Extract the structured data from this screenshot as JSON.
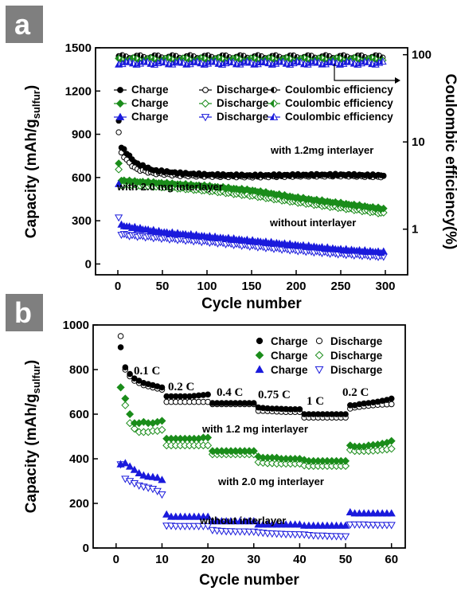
{
  "chart_data": [
    {
      "panel": "a",
      "type": "scatter",
      "xlabel": "Cycle number",
      "ylabel": "Capacity (mAh/g",
      "ylabel_sub": "sulfur",
      "ylabel_tail": ")",
      "y2label": "Coulombic efficiency(%)",
      "xlim": [
        -25,
        325
      ],
      "ylim": [
        -75,
        1500
      ],
      "y2lim_log": [
        0.3,
        120
      ],
      "x_ticks": [
        "0",
        "50",
        "100",
        "150",
        "200",
        "250",
        "300"
      ],
      "y_ticks": [
        "0",
        "300",
        "600",
        "900",
        "1200",
        "1500"
      ],
      "y2_ticks": [
        "1",
        "10",
        "100"
      ],
      "legend": [
        [
          "Charge",
          "Discharge",
          "Coulombic efficiency"
        ],
        [
          "Charge",
          "Discharge",
          "Coulombic efficiency"
        ],
        [
          "Charge",
          "Discharge",
          "Coulombic efficiency"
        ]
      ],
      "annotations": [
        "with 1.2mg interlayer",
        "with 2.0 mg interlayer",
        "without interlayer"
      ],
      "series": [
        {
          "name": "with 1.2mg interlayer",
          "color": "#000000",
          "charge_anchors": [
            [
              1,
              990
            ],
            [
              3,
              820
            ],
            [
              10,
              770
            ],
            [
              20,
              700
            ],
            [
              40,
              650
            ],
            [
              70,
              630
            ],
            [
              100,
              620
            ],
            [
              150,
              615
            ],
            [
              200,
              618
            ],
            [
              250,
              620
            ],
            [
              300,
              615
            ]
          ],
          "discharge_anchors": [
            [
              1,
              910
            ],
            [
              3,
              780
            ],
            [
              10,
              720
            ],
            [
              20,
              660
            ],
            [
              40,
              630
            ],
            [
              70,
              615
            ],
            [
              100,
              610
            ],
            [
              150,
              605
            ],
            [
              200,
              610
            ],
            [
              250,
              612
            ],
            [
              300,
              605
            ]
          ],
          "ce": 95
        },
        {
          "name": "with 2.0 mg interlayer",
          "color": "#1a8c1a",
          "charge_anchors": [
            [
              1,
              700
            ],
            [
              3,
              580
            ],
            [
              10,
              575
            ],
            [
              50,
              560
            ],
            [
              100,
              540
            ],
            [
              150,
              510
            ],
            [
              200,
              460
            ],
            [
              250,
              420
            ],
            [
              300,
              380
            ]
          ],
          "discharge_anchors": [
            [
              1,
              650
            ],
            [
              3,
              550
            ],
            [
              10,
              550
            ],
            [
              50,
              535
            ],
            [
              100,
              510
            ],
            [
              150,
              475
            ],
            [
              200,
              430
            ],
            [
              250,
              390
            ],
            [
              300,
              350
            ]
          ],
          "ce": 88
        },
        {
          "name": "without interlayer",
          "color": "#1a1adc",
          "charge_anchors": [
            [
              1,
              560
            ],
            [
              3,
              270
            ],
            [
              10,
              260
            ],
            [
              50,
              220
            ],
            [
              100,
              190
            ],
            [
              150,
              160
            ],
            [
              200,
              130
            ],
            [
              250,
              100
            ],
            [
              300,
              80
            ]
          ],
          "discharge_anchors": [
            [
              1,
              320
            ],
            [
              3,
              210
            ],
            [
              10,
              200
            ],
            [
              50,
              180
            ],
            [
              100,
              155
            ],
            [
              150,
              125
            ],
            [
              200,
              95
            ],
            [
              250,
              70
            ],
            [
              300,
              50
            ]
          ],
          "ce": 80
        }
      ]
    },
    {
      "panel": "b",
      "type": "scatter",
      "xlabel": "Cycle number",
      "ylabel": "Capacity (mAh/g",
      "ylabel_sub": "sulfur",
      "ylabel_tail": ")",
      "xlim": [
        -5,
        63
      ],
      "ylim": [
        0,
        1000
      ],
      "x_ticks": [
        "0",
        "10",
        "20",
        "30",
        "40",
        "50",
        "60"
      ],
      "y_ticks": [
        "0",
        "200",
        "400",
        "600",
        "800",
        "1000"
      ],
      "legend": [
        [
          "Charge",
          "Discharge"
        ],
        [
          "Charge",
          "Discharge"
        ],
        [
          "Charge",
          "Discharge"
        ]
      ],
      "rate_labels": [
        "0.1 C",
        "0.2 C",
        "0.4 C",
        "0.75 C",
        "1 C",
        "0.2 C"
      ],
      "annotations": [
        "with 1.2 mg interlayer",
        "with 2.0 mg interlayer",
        "without interlayer"
      ],
      "series": [
        {
          "name": "with 1.2 mg interlayer",
          "color": "#000000",
          "charge": [
            900,
            810,
            780,
            760,
            750,
            740,
            735,
            730,
            725,
            720,
            680,
            680,
            680,
            680,
            680,
            680,
            682,
            684,
            686,
            688,
            650,
            650,
            650,
            650,
            650,
            650,
            650,
            650,
            650,
            650,
            630,
            628,
            626,
            625,
            625,
            624,
            623,
            622,
            622,
            622,
            600,
            600,
            600,
            600,
            600,
            600,
            600,
            600,
            600,
            600,
            640,
            640,
            645,
            648,
            650,
            653,
            656,
            660,
            664,
            670
          ],
          "discharge": [
            950,
            800,
            770,
            750,
            740,
            730,
            725,
            720,
            715,
            710,
            655,
            655,
            655,
            655,
            655,
            655,
            655,
            655,
            655,
            655,
            645,
            645,
            645,
            645,
            645,
            645,
            645,
            645,
            645,
            645,
            615,
            615,
            614,
            613,
            612,
            611,
            610,
            610,
            610,
            610,
            585,
            585,
            585,
            585,
            585,
            585,
            585,
            585,
            585,
            585,
            625,
            630,
            633,
            636,
            638,
            640,
            642,
            643,
            644,
            645
          ]
        },
        {
          "name": "with 2.0 mg interlayer",
          "color": "#1a8c1a",
          "charge": [
            720,
            670,
            600,
            560,
            560,
            565,
            560,
            560,
            565,
            570,
            490,
            490,
            490,
            490,
            490,
            490,
            490,
            490,
            495,
            495,
            435,
            435,
            435,
            435,
            435,
            435,
            435,
            435,
            435,
            435,
            410,
            405,
            405,
            405,
            405,
            400,
            400,
            400,
            400,
            400,
            395,
            390,
            390,
            390,
            390,
            390,
            390,
            390,
            390,
            390,
            460,
            455,
            455,
            455,
            460,
            462,
            464,
            468,
            472,
            480
          ],
          "discharge": [
            720,
            640,
            560,
            535,
            520,
            520,
            520,
            525,
            525,
            530,
            460,
            460,
            460,
            460,
            460,
            460,
            460,
            460,
            460,
            460,
            420,
            420,
            420,
            420,
            420,
            420,
            420,
            420,
            420,
            420,
            385,
            382,
            380,
            380,
            378,
            378,
            378,
            378,
            378,
            378,
            370,
            368,
            368,
            368,
            368,
            368,
            368,
            368,
            368,
            368,
            440,
            435,
            435,
            435,
            435,
            436,
            438,
            440,
            442,
            445
          ]
        },
        {
          "name": "without interlayer",
          "color": "#1a1adc",
          "charge": [
            375,
            380,
            365,
            350,
            335,
            325,
            320,
            318,
            315,
            305,
            150,
            140,
            140,
            140,
            140,
            140,
            140,
            140,
            140,
            140,
            120,
            120,
            120,
            120,
            120,
            120,
            120,
            120,
            120,
            120,
            105,
            105,
            105,
            105,
            105,
            105,
            105,
            105,
            105,
            105,
            100,
            100,
            100,
            100,
            100,
            100,
            100,
            100,
            100,
            100,
            160,
            155,
            155,
            155,
            155,
            155,
            155,
            155,
            155,
            155
          ],
          "discharge": [
            375,
            310,
            300,
            290,
            280,
            275,
            270,
            265,
            255,
            240,
            100,
            100,
            98,
            98,
            98,
            98,
            98,
            98,
            98,
            98,
            80,
            78,
            76,
            75,
            75,
            74,
            74,
            74,
            73,
            73,
            70,
            68,
            66,
            65,
            64,
            63,
            62,
            62,
            61,
            61,
            60,
            58,
            56,
            55,
            55,
            54,
            53,
            53,
            52,
            52,
            105,
            105,
            105,
            105,
            104,
            104,
            103,
            103,
            103,
            103
          ]
        }
      ]
    }
  ]
}
